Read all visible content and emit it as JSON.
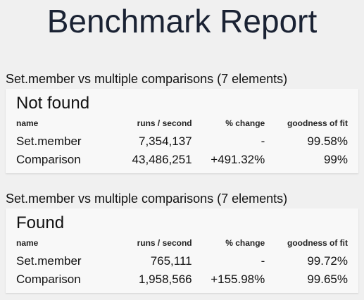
{
  "page": {
    "title": "Benchmark Report"
  },
  "columns": {
    "name": "name",
    "runs": "runs / second",
    "change": "% change",
    "fit": "goodness of fit"
  },
  "sections": [
    {
      "heading": "Set.member vs multiple comparisons (7 elements)",
      "card_title": "Not found",
      "rows": [
        {
          "name": "Set.member",
          "runs": "7,354,137",
          "change": "-",
          "fit": "99.58%"
        },
        {
          "name": "Comparison",
          "runs": "43,486,251",
          "change": "+491.32%",
          "fit": "99%"
        }
      ]
    },
    {
      "heading": "Set.member vs multiple comparisons (7 elements)",
      "card_title": "Found",
      "rows": [
        {
          "name": "Set.member",
          "runs": "765,111",
          "change": "-",
          "fit": "99.72%"
        },
        {
          "name": "Comparison",
          "runs": "1,958,566",
          "change": "+155.98%",
          "fit": "99.65%"
        }
      ]
    }
  ]
}
